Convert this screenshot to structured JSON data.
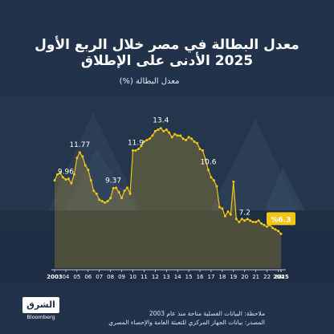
{
  "header": {
    "title_line1": "معدل البطالة في مصر خلال الربع الأول",
    "title_line2": "2025 الأدنى على الإطلاق",
    "subtitle": "معدل البطالة (%)"
  },
  "footer": {
    "note": "ملاحظة: البيانات الفصلية متاحة منذ عام 2003",
    "source": "المصدر: بيانات الجهاز المركزي للتعبئة العامة والإحصاء المصري"
  },
  "logo": {
    "name": "الشرق",
    "sub": "Bloomberg"
  },
  "colors": {
    "background": "#22324a",
    "line": "#f2c617",
    "fill": "#c9a52a",
    "highlight_label_bg": "#f2c617",
    "highlight_label_text": "#1f2f46"
  },
  "chart_data": {
    "type": "line",
    "title": "معدل البطالة في مصر خلال الربع الأول 2025 الأدنى على الإطلاق",
    "ylabel": "معدل البطالة (%)",
    "x_tick_labels": [
      "2003",
      "04",
      "05",
      "06",
      "07",
      "08",
      "09",
      "10",
      "11",
      "12",
      "13",
      "14",
      "15",
      "16",
      "17",
      "18",
      "19",
      "20",
      "21",
      "22",
      "23",
      "24",
      "2025"
    ],
    "ylim": [
      4,
      15
    ],
    "frequency": "quarterly",
    "series": [
      {
        "values": [
          9.9,
          10.3,
          10.4,
          10.1,
          9.96,
          10.0,
          9.7,
          10.3,
          11.4,
          11.77,
          11.5,
          10.9,
          10.6,
          9.9,
          9.2,
          9.0,
          8.6,
          8.5,
          8.4,
          8.5,
          8.7,
          9.37,
          9.4,
          9.1,
          8.7,
          9.2,
          9.4,
          9.0,
          11.9,
          11.9,
          12.0,
          12.2,
          12.5,
          12.6,
          12.7,
          12.9,
          13.2,
          13.3,
          13.4,
          13.2,
          13.3,
          13.1,
          12.8,
          13.0,
          12.9,
          12.9,
          12.7,
          12.6,
          12.8,
          12.7,
          12.5,
          12.4,
          12.0,
          11.9,
          11.3,
          10.6,
          10.1,
          9.9,
          9.5,
          8.1,
          8.0,
          7.5,
          7.8,
          7.6,
          9.8,
          7.3,
          7.1,
          7.3,
          7.2,
          7.3,
          7.2,
          7.1,
          7.1,
          7.2,
          7.0,
          6.9,
          6.8,
          6.9,
          6.7,
          6.6,
          6.5,
          6.3
        ]
      }
    ],
    "data_labels": [
      {
        "label": "9.96",
        "index": 4
      },
      {
        "label": "11.77",
        "index": 9
      },
      {
        "label": "9.37",
        "index": 21
      },
      {
        "label": "11.9",
        "index": 29
      },
      {
        "label": "13.4",
        "index": 38
      },
      {
        "label": "10.6",
        "index": 55
      },
      {
        "label": "7.2",
        "index": 68
      },
      {
        "label": "%6.3",
        "index": 81,
        "highlight": true
      }
    ],
    "grid": false,
    "legend": "none"
  }
}
